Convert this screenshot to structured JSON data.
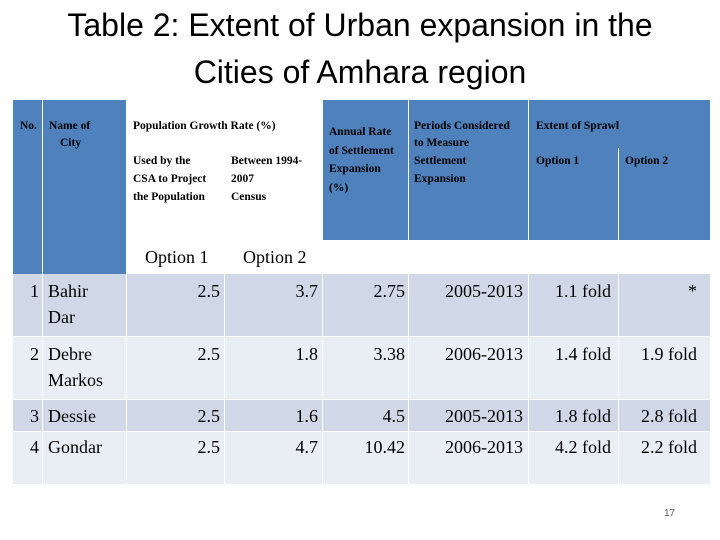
{
  "title": {
    "line1": "Table 2:  Extent of Urban expansion in the",
    "line2": "Cities of Amhara region"
  },
  "headers": {
    "no": "No.",
    "city": "Name of",
    "city2": "City",
    "pop_rate": "Population Growth Rate (%)",
    "csa_1": "Used by the",
    "csa_2": "CSA to Project",
    "csa_3": "the Population",
    "census_1": "Between 1994-",
    "census_2": "2007",
    "census_3": "Census",
    "annual_1": "Annual Rate",
    "annual_2": "of Settlement",
    "annual_3": "Expansion",
    "annual_4": "(%)",
    "period_1": "Periods Considered",
    "period_2": "to Measure",
    "period_3": "Settlement",
    "period_4": "Expansion",
    "sprawl": "Extent of Sprawl",
    "sprawl_opt1": "Option 1",
    "sprawl_opt2": "Option 2",
    "pop_opt1": "Option 1",
    "pop_opt2": "Option 2"
  },
  "rows": [
    {
      "no": "1",
      "city": "Bahir",
      "city2": "Dar",
      "opt1": "2.5",
      "opt2": "3.7",
      "annual": "2.75",
      "period": "2005-2013",
      "sprawl1": "1.1 fold",
      "sprawl2": "*"
    },
    {
      "no": "2",
      "city": "Debre",
      "city2": "Markos",
      "opt1": "2.5",
      "opt2": "1.8",
      "annual": "3.38",
      "period": "2006-2013",
      "sprawl1": "1.4 fold",
      "sprawl2": "1.9 fold"
    },
    {
      "no": "3",
      "city": "Dessie",
      "city2": "",
      "opt1": "2.5",
      "opt2": "1.6",
      "annual": "4.5",
      "period": "2005-2013",
      "sprawl1": "1.8 fold",
      "sprawl2": "2.8 fold"
    },
    {
      "no": "4",
      "city": "Gondar",
      "city2": "",
      "opt1": "2.5",
      "opt2": "4.7",
      "annual": "10.42",
      "period": "2006-2013",
      "sprawl1": "4.2 fold",
      "sprawl2": "2.2 fold"
    }
  ],
  "page_number": "17"
}
